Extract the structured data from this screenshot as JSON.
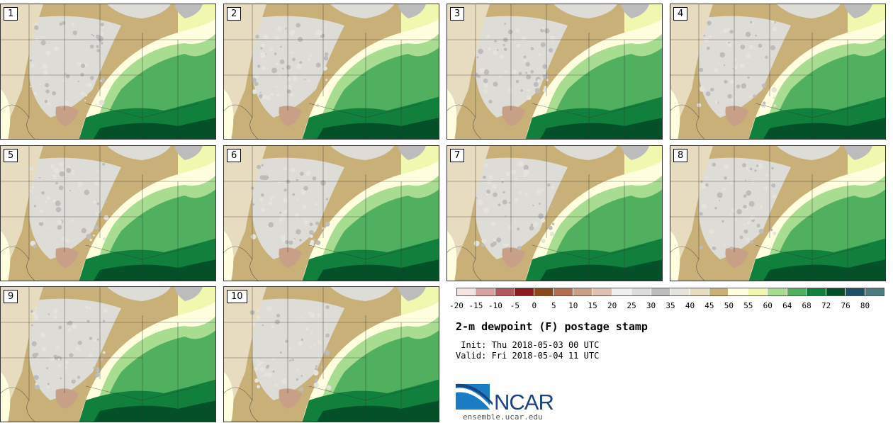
{
  "panels": [
    {
      "label": "1"
    },
    {
      "label": "2"
    },
    {
      "label": "3"
    },
    {
      "label": "4"
    },
    {
      "label": "5"
    },
    {
      "label": "6"
    },
    {
      "label": "7"
    },
    {
      "label": "8"
    },
    {
      "label": "9"
    },
    {
      "label": "10"
    }
  ],
  "colorbar": {
    "ticks": [
      "-20",
      "-15",
      "-10",
      "-5",
      "0",
      "5",
      "10",
      "15",
      "20",
      "25",
      "30",
      "35",
      "40",
      "45",
      "50",
      "55",
      "60",
      "64",
      "68",
      "72",
      "76",
      "80"
    ],
    "colors": [
      "#f5e3e0",
      "#d8a0a0",
      "#b05a60",
      "#8a1a20",
      "#8a4a18",
      "#b07050",
      "#c8a088",
      "#dcc0b0",
      "#f0f0f0",
      "#dcdcdc",
      "#bcbcbc",
      "#e4e4dc",
      "#e8dcc0",
      "#c8b078",
      "#ffffe0",
      "#f0f8b0",
      "#a8dc90",
      "#50b060",
      "#10803c",
      "#045028",
      "#1c5064",
      "#4c7c80"
    ]
  },
  "title": "2-m dewpoint (F) postage stamp",
  "init_text": " Init: Thu 2018-05-03 00 UTC",
  "valid_text": "Valid: Fri 2018-05-04 11 UTC",
  "logo_text": "NCAR",
  "site": "ensemble.ucar.edu",
  "colors": {
    "accent": "#1a4480"
  }
}
